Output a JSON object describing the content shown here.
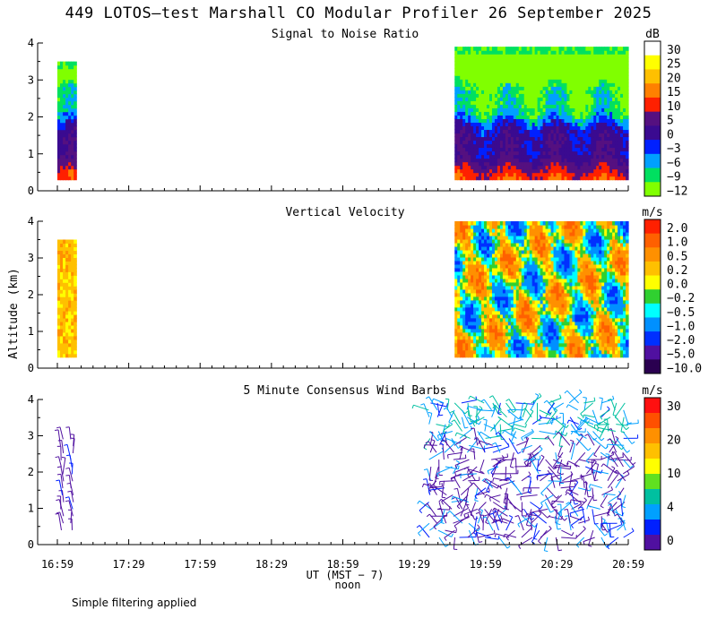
{
  "title": "449 LOTOS—test Marshall CO Modular Profiler 26 September 2025",
  "footnote": "Simple filtering applied",
  "x_axis": {
    "label": "UT  (MST − 7)",
    "sublabel": "noon",
    "ticks": [
      "16:59",
      "17:29",
      "17:59",
      "18:29",
      "18:59",
      "19:29",
      "19:59",
      "20:29",
      "20:59"
    ]
  },
  "y_axis": {
    "label": "Altitude (km)",
    "ticks": [
      "0",
      "1",
      "2",
      "3",
      "4"
    ]
  },
  "chart_data": [
    {
      "type": "heatmap",
      "title": "Signal to Noise Ratio",
      "unit": "dB",
      "ylim": [
        0,
        4
      ],
      "xlabel": "UT (MST - 7)",
      "ylabel": "Altitude (km)",
      "colorbar": {
        "labels": [
          "30",
          "25",
          "20",
          "15",
          "10",
          "5",
          "0",
          "−3",
          "−6",
          "−9",
          "−12"
        ],
        "colors": [
          "#ffffff",
          "#ffff00",
          "#ffc000",
          "#ff8000",
          "#ff2000",
          "#551080",
          "#3a0a90",
          "#0020ff",
          "#00a0ff",
          "#00e060",
          "#80ff00"
        ]
      },
      "data_segments": [
        {
          "start": "16:59",
          "end": "17:07",
          "alt_range_km": [
            0.3,
            3.5
          ]
        },
        {
          "start": "19:46",
          "end": "20:59",
          "alt_range_km": [
            0.3,
            3.9
          ]
        }
      ]
    },
    {
      "type": "heatmap",
      "title": "Vertical Velocity",
      "unit": "m/s",
      "ylim": [
        0,
        4
      ],
      "xlabel": "UT (MST - 7)",
      "ylabel": "Altitude (km)",
      "colorbar": {
        "labels": [
          "2.0",
          "1.0",
          "0.5",
          "0.2",
          "0.0",
          "−0.2",
          "−0.5",
          "−1.0",
          "−2.0",
          "−5.0",
          "−10.0"
        ],
        "colors": [
          "#ff2000",
          "#ff6000",
          "#ff9000",
          "#ffc000",
          "#ffff00",
          "#30d030",
          "#00ffff",
          "#0090ff",
          "#0030ff",
          "#5010a0",
          "#2a0050"
        ]
      },
      "data_segments": [
        {
          "start": "16:59",
          "end": "17:07",
          "alt_range_km": [
            0.3,
            3.5
          ]
        },
        {
          "start": "19:46",
          "end": "20:59",
          "alt_range_km": [
            0.3,
            4.0
          ]
        }
      ]
    },
    {
      "type": "scatter",
      "subtype": "wind_barbs",
      "title": "5 Minute Consensus Wind Barbs",
      "unit": "m/s",
      "ylim": [
        0,
        4
      ],
      "xlabel": "UT (MST - 7)",
      "ylabel": "Altitude (km)",
      "colorbar": {
        "labels": [
          "30",
          "20",
          "10",
          "4",
          "0"
        ],
        "colors": [
          "#ff1010",
          "#ff5000",
          "#ff9000",
          "#ffc000",
          "#ffff00",
          "#60e020",
          "#00c0a0",
          "#00a0ff",
          "#0020ff",
          "#5010a0"
        ]
      },
      "data_segments": [
        {
          "start": "16:59",
          "end": "17:07",
          "alt_range_km": [
            0.3,
            3.0
          ]
        },
        {
          "start": "19:34",
          "end": "20:59",
          "alt_range_km": [
            0.1,
            4.0
          ]
        }
      ]
    }
  ]
}
